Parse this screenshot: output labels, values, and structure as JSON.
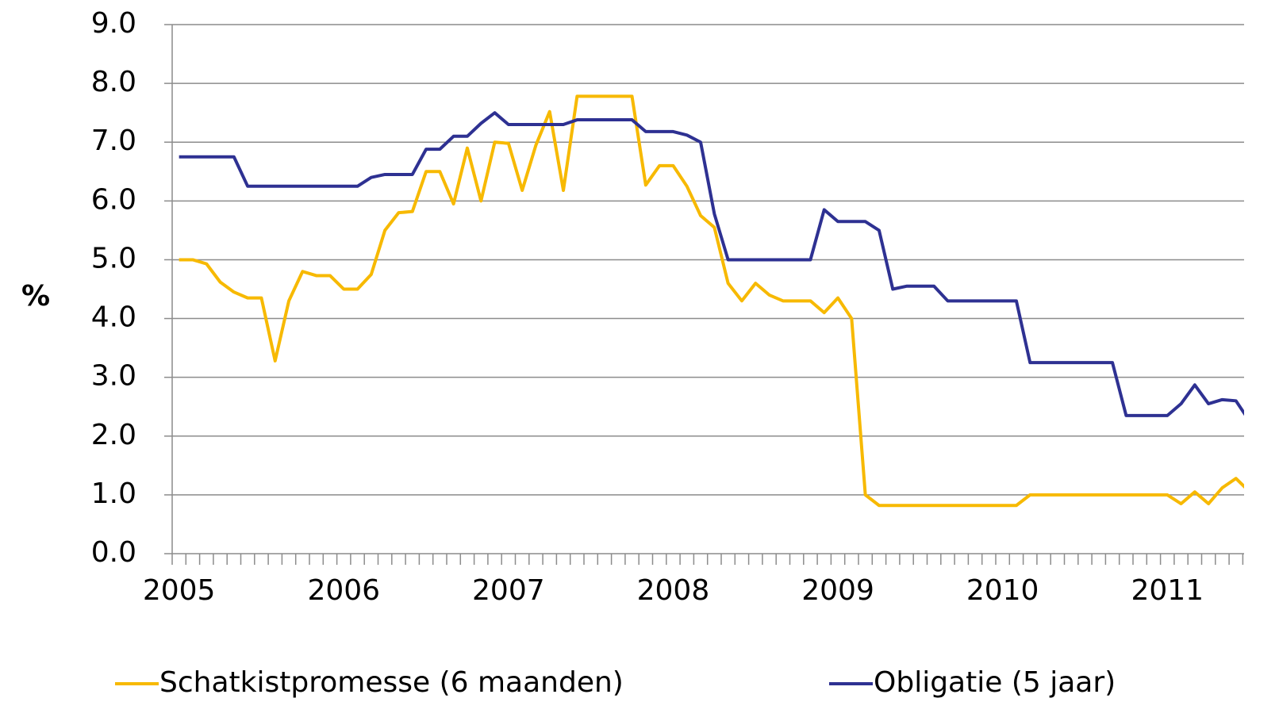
{
  "chart_data": {
    "type": "line",
    "ylabel": "%",
    "categories": [
      "2005",
      null,
      null,
      null,
      null,
      null,
      null,
      null,
      null,
      null,
      null,
      null,
      "2006",
      null,
      null,
      null,
      null,
      null,
      null,
      null,
      null,
      null,
      null,
      null,
      "2007",
      null,
      null,
      null,
      null,
      null,
      null,
      null,
      null,
      null,
      null,
      null,
      "2008",
      null,
      null,
      null,
      null,
      null,
      null,
      null,
      null,
      null,
      null,
      null,
      "2009",
      null,
      null,
      null,
      null,
      null,
      null,
      null,
      null,
      null,
      null,
      null,
      "2010",
      null,
      null,
      null,
      null,
      null,
      null,
      null,
      null,
      null,
      null,
      null,
      "2011",
      null,
      null,
      null,
      null,
      null,
      null
    ],
    "series": [
      {
        "name": "Schatkistpromesse (6 maanden)",
        "color": "#F7B900",
        "values": [
          5.0,
          5.0,
          4.93,
          4.62,
          4.45,
          4.35,
          4.35,
          3.28,
          4.3,
          4.8,
          4.73,
          4.73,
          4.5,
          4.5,
          4.75,
          5.5,
          5.8,
          5.82,
          6.5,
          6.5,
          5.95,
          6.9,
          6.0,
          7.0,
          6.98,
          6.18,
          6.95,
          7.52,
          6.18,
          7.78,
          7.78,
          7.78,
          7.78,
          7.78,
          6.27,
          6.6,
          6.6,
          6.25,
          5.75,
          5.55,
          4.6,
          4.3,
          4.6,
          4.4,
          4.3,
          4.3,
          4.3,
          4.1,
          4.35,
          4.0,
          1.0,
          0.82,
          0.82,
          0.82,
          0.82,
          0.82,
          0.82,
          0.82,
          0.82,
          0.82,
          0.82,
          0.82,
          1.0,
          1.0,
          1.0,
          1.0,
          1.0,
          1.0,
          1.0,
          1.0,
          1.0,
          1.0,
          1.0,
          0.85,
          1.05,
          0.85,
          1.12,
          1.28,
          1.05
        ]
      },
      {
        "name": "Obligatie (5 jaar)",
        "color": "#2E3192",
        "values": [
          6.75,
          6.75,
          6.75,
          6.75,
          6.75,
          6.25,
          6.25,
          6.25,
          6.25,
          6.25,
          6.25,
          6.25,
          6.25,
          6.25,
          6.4,
          6.45,
          6.45,
          6.45,
          6.88,
          6.88,
          7.1,
          7.1,
          7.32,
          7.5,
          7.3,
          7.3,
          7.3,
          7.3,
          7.3,
          7.38,
          7.38,
          7.38,
          7.38,
          7.38,
          7.18,
          7.18,
          7.18,
          7.12,
          7.0,
          5.78,
          5.0,
          5.0,
          5.0,
          5.0,
          5.0,
          5.0,
          5.0,
          5.85,
          5.65,
          5.65,
          5.65,
          5.5,
          4.5,
          4.55,
          4.55,
          4.55,
          4.3,
          4.3,
          4.3,
          4.3,
          4.3,
          4.3,
          3.25,
          3.25,
          3.25,
          3.25,
          3.25,
          3.25,
          3.25,
          2.35,
          2.35,
          2.35,
          2.35,
          2.55,
          2.87,
          2.55,
          2.62,
          2.6,
          2.25
        ]
      }
    ],
    "ylim": [
      0,
      9
    ],
    "yticks": [
      {
        "value": 0,
        "label": "0.0"
      },
      {
        "value": 1,
        "label": "1.0"
      },
      {
        "value": 2,
        "label": "2.0"
      },
      {
        "value": 3,
        "label": "3.0"
      },
      {
        "value": 4,
        "label": "4.0"
      },
      {
        "value": 5,
        "label": "5.0"
      },
      {
        "value": 6,
        "label": "6.0"
      },
      {
        "value": 7,
        "label": "7.0"
      },
      {
        "value": 8,
        "label": "8.0"
      },
      {
        "value": 9,
        "label": "9.0"
      }
    ],
    "grid": true,
    "legend": "bottom"
  }
}
